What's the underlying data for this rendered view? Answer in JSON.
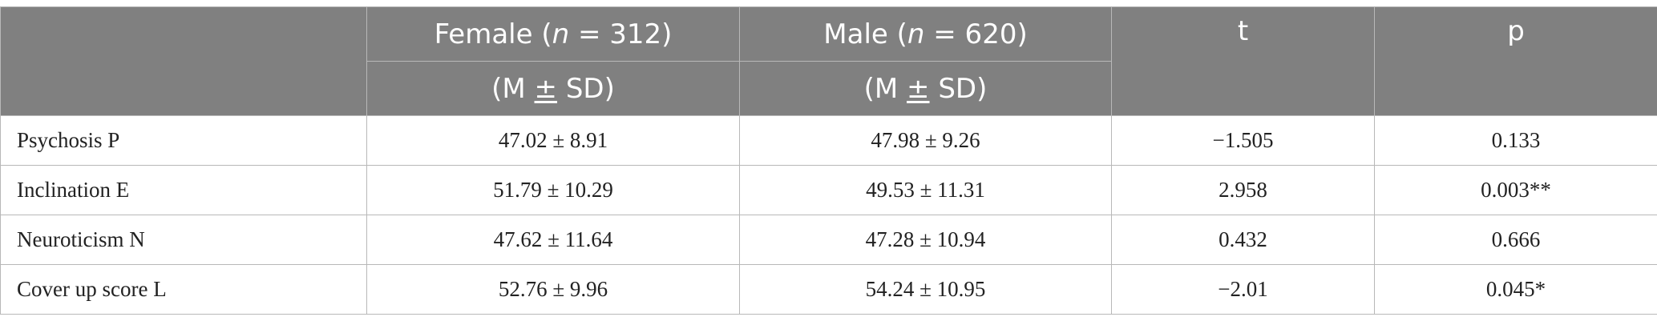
{
  "table": {
    "header": {
      "female_prefix": "Female (",
      "n_symbol": "n",
      "female_suffix": " = 312)",
      "male_prefix": "Male (",
      "male_suffix": " = 620)",
      "msd_left": "(M ",
      "msd_pm": "±",
      "msd_right": " SD)",
      "t_label": "t",
      "p_label": "p"
    },
    "rows": [
      {
        "label": "Psychosis P",
        "female": "47.02 ± 8.91",
        "male": "47.98 ± 9.26",
        "t": "−1.505",
        "p": "0.133"
      },
      {
        "label": "Inclination E",
        "female": "51.79 ± 10.29",
        "male": "49.53 ± 11.31",
        "t": "2.958",
        "p": "0.003**"
      },
      {
        "label": "Neuroticism N",
        "female": "47.62 ± 11.64",
        "male": "47.28 ± 10.94",
        "t": "0.432",
        "p": "0.666"
      },
      {
        "label": "Cover up score L",
        "female": "52.76 ± 9.96",
        "male": "54.24 ± 10.95",
        "t": "−2.01",
        "p": "0.045*"
      }
    ]
  }
}
